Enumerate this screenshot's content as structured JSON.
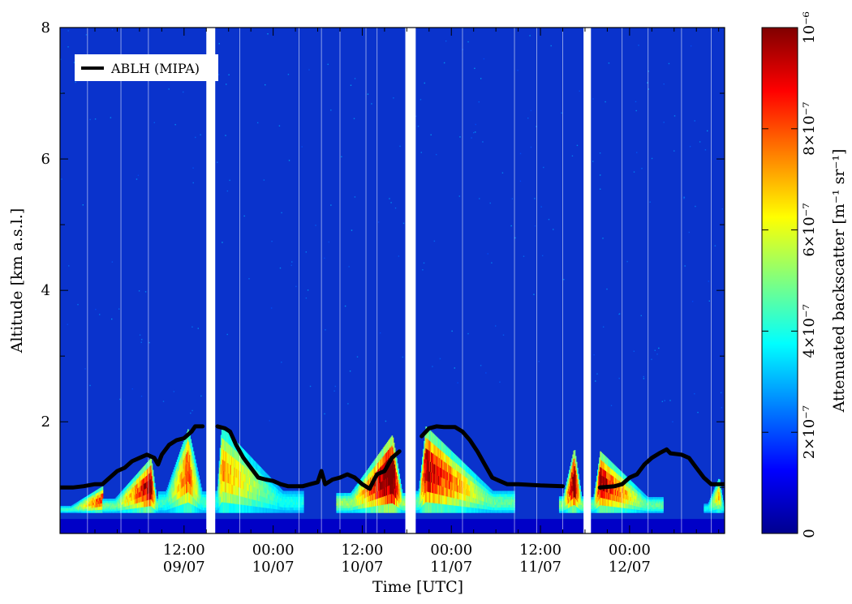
{
  "chart_data": {
    "type": "heatmap",
    "title": "",
    "xlabel": "Time [UTC]",
    "ylabel": "Altitude [km a.s.l.]",
    "ylim": [
      0.3,
      8
    ],
    "xlim_hours": [
      -4.7,
      84.8
    ],
    "x_tick_hours": [
      12,
      24,
      36,
      48,
      60,
      72
    ],
    "x_tick_labels": [
      {
        "time": "12:00",
        "date": "09/07"
      },
      {
        "time": "00:00",
        "date": "10/07"
      },
      {
        "time": "12:00",
        "date": "10/07"
      },
      {
        "time": "00:00",
        "date": "11/07"
      },
      {
        "time": "12:00",
        "date": "11/07"
      },
      {
        "time": "00:00",
        "date": "12/07"
      }
    ],
    "y_ticks": [
      "2",
      "4",
      "6",
      "8"
    ],
    "colorbar": {
      "label": "Attenuated backscatter [m⁻¹ sr⁻¹]",
      "range": [
        0,
        1e-06
      ],
      "ticks": [
        "0",
        "2×10⁻⁷",
        "4×10⁻⁷",
        "6×10⁻⁷",
        "8×10⁻⁷",
        "10⁻⁶"
      ],
      "colormap": "jet"
    },
    "legend": {
      "position": "top-left",
      "entries": [
        "ABLH (MIPA)"
      ]
    },
    "data_gaps_hours": [
      [
        15,
        16.2
      ],
      [
        41.8,
        43.2
      ],
      [
        65.8,
        66.8
      ]
    ],
    "ablh_series": {
      "name": "ABLH (MIPA)",
      "color": "#000000",
      "points": [
        [
          -4.7,
          1.0
        ],
        [
          -3,
          1.0
        ],
        [
          -1.5,
          1.02
        ],
        [
          0,
          1.05
        ],
        [
          1,
          1.05
        ],
        [
          2,
          1.15
        ],
        [
          3,
          1.25
        ],
        [
          4,
          1.3
        ],
        [
          5,
          1.4
        ],
        [
          6,
          1.45
        ],
        [
          7,
          1.5
        ],
        [
          8,
          1.45
        ],
        [
          8.5,
          1.35
        ],
        [
          9,
          1.5
        ],
        [
          10,
          1.65
        ],
        [
          11,
          1.72
        ],
        [
          12,
          1.75
        ],
        [
          13,
          1.85
        ],
        [
          13.5,
          1.93
        ],
        [
          14.5,
          1.93
        ],
        [
          16.5,
          1.93
        ],
        [
          17.5,
          1.9
        ],
        [
          18.2,
          1.85
        ],
        [
          19,
          1.65
        ],
        [
          20,
          1.45
        ],
        [
          21,
          1.3
        ],
        [
          22,
          1.15
        ],
        [
          23,
          1.12
        ],
        [
          24,
          1.1
        ],
        [
          25,
          1.05
        ],
        [
          26,
          1.02
        ],
        [
          28,
          1.02
        ],
        [
          29,
          1.05
        ],
        [
          30,
          1.08
        ],
        [
          30.5,
          1.25
        ],
        [
          31,
          1.05
        ],
        [
          32,
          1.12
        ],
        [
          33,
          1.15
        ],
        [
          34,
          1.2
        ],
        [
          35,
          1.15
        ],
        [
          36,
          1.05
        ],
        [
          37,
          0.98
        ],
        [
          37.5,
          1.1
        ],
        [
          38,
          1.2
        ],
        [
          39,
          1.25
        ],
        [
          40,
          1.45
        ],
        [
          41,
          1.55
        ],
        [
          42,
          1.65
        ],
        [
          43,
          1.72
        ],
        [
          44,
          1.78
        ],
        [
          45,
          1.9
        ],
        [
          46,
          1.93
        ],
        [
          47,
          1.92
        ],
        [
          48.5,
          1.92
        ],
        [
          49.5,
          1.85
        ],
        [
          50.5,
          1.72
        ],
        [
          51.5,
          1.55
        ],
        [
          52.5,
          1.35
        ],
        [
          53.5,
          1.15
        ],
        [
          54.5,
          1.1
        ],
        [
          55.5,
          1.05
        ],
        [
          57,
          1.05
        ],
        [
          60,
          1.03
        ],
        [
          63,
          1.02
        ],
        [
          66,
          1.0
        ],
        [
          68,
          1.0
        ],
        [
          70,
          1.02
        ],
        [
          71,
          1.05
        ],
        [
          72,
          1.15
        ],
        [
          73,
          1.2
        ],
        [
          74,
          1.35
        ],
        [
          75,
          1.45
        ],
        [
          76,
          1.52
        ],
        [
          77,
          1.58
        ],
        [
          77.5,
          1.52
        ],
        [
          79,
          1.5
        ],
        [
          80,
          1.45
        ],
        [
          81,
          1.3
        ],
        [
          82,
          1.15
        ],
        [
          83,
          1.05
        ],
        [
          84,
          1.05
        ],
        [
          84.8,
          1.05
        ]
      ]
    },
    "backscatter_lobes": [
      {
        "start": -4.7,
        "end": 1.0,
        "peak": 1.0,
        "top": 1.02,
        "maxval": 0.62
      },
      {
        "start": 1.0,
        "end": 8.5,
        "peak": 7.5,
        "top": 1.45,
        "maxval": 0.78
      },
      {
        "start": 8.5,
        "end": 15.0,
        "peak": 12.5,
        "top": 1.9,
        "maxval": 0.6
      },
      {
        "start": 16.2,
        "end": 28.0,
        "peak": 17.0,
        "top": 1.93,
        "maxval": 0.5
      },
      {
        "start": 32.5,
        "end": 41.8,
        "peak": 40.0,
        "top": 1.8,
        "maxval": 0.95
      },
      {
        "start": 43.2,
        "end": 56.5,
        "peak": 44.5,
        "top": 1.93,
        "maxval": 0.75
      },
      {
        "start": 62.5,
        "end": 65.8,
        "peak": 64.5,
        "top": 1.6,
        "maxval": 0.85
      },
      {
        "start": 66.8,
        "end": 76.5,
        "peak": 68.0,
        "top": 1.55,
        "maxval": 0.75
      },
      {
        "start": 82.0,
        "end": 84.8,
        "peak": 84.0,
        "top": 1.15,
        "maxval": 0.45
      }
    ]
  }
}
